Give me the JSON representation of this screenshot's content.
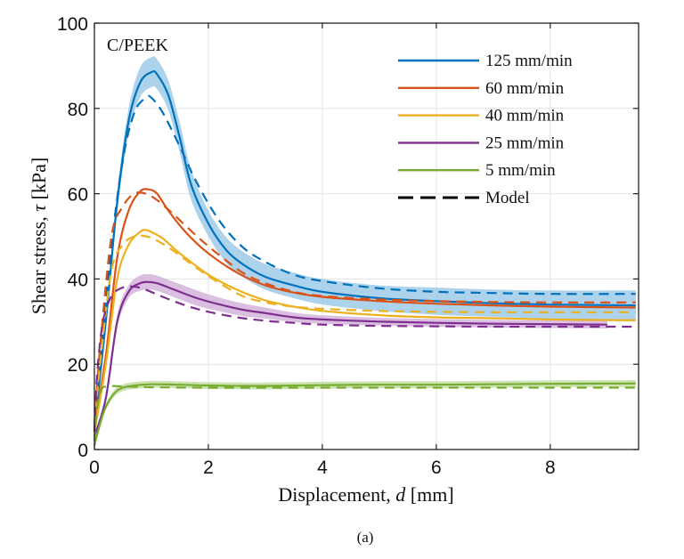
{
  "chart_data": {
    "type": "line",
    "title": "",
    "annotation": "C/PEEK",
    "caption": "(a)",
    "xlabel": "Displacement, d [mm]",
    "xlabel_parts": {
      "pre": "Displacement, ",
      "var": "d",
      "post": " [mm]"
    },
    "ylabel": "Shear stress, τ [kPa]",
    "ylabel_parts": {
      "pre": "Shear stress, ",
      "var": "τ",
      "post": " [kPa]"
    },
    "xlim": [
      0,
      9.55
    ],
    "ylim": [
      0,
      100
    ],
    "xticks": [
      0,
      2,
      4,
      6,
      8
    ],
    "yticks": [
      0,
      20,
      40,
      60,
      80,
      100
    ],
    "xtick_labels": [
      "0",
      "2",
      "4",
      "6",
      "8"
    ],
    "ytick_labels": [
      "0",
      "20",
      "40",
      "60",
      "80",
      "100"
    ],
    "grid": true,
    "legend_position": "top-right",
    "legend": [
      {
        "label": "125 mm/min",
        "color": "#0072BD",
        "style": "solid"
      },
      {
        "label": "60 mm/min",
        "color": "#D95319",
        "style": "solid"
      },
      {
        "label": "40 mm/min",
        "color": "#EDB120",
        "style": "solid"
      },
      {
        "label": "25 mm/min",
        "color": "#7E2F8E",
        "style": "solid"
      },
      {
        "label": "5 mm/min",
        "color": "#77AC30",
        "style": "solid"
      },
      {
        "label": "Model",
        "color": "#000000",
        "style": "dashed"
      }
    ],
    "series": [
      {
        "name": "125 mm/min",
        "color": "#0072BD",
        "band_color": "#9ECAE9",
        "kind": "experiment",
        "x": [
          0,
          0.2,
          0.4,
          0.6,
          0.8,
          1.0,
          1.1,
          1.3,
          1.5,
          1.7,
          2.0,
          2.3,
          2.6,
          3.0,
          3.5,
          4.0,
          5.0,
          6.0,
          7.0,
          8.0,
          9.5
        ],
        "y": [
          5,
          30,
          58,
          77,
          86,
          88.5,
          88,
          83,
          73,
          62,
          53,
          47,
          43.5,
          40.5,
          38.5,
          37,
          35.5,
          34.8,
          34.3,
          34,
          33.8
        ],
        "band": [
          0.5,
          1.5,
          2.5,
          3,
          3.5,
          3.5,
          3.5,
          3.5,
          3.5,
          3.5,
          3,
          3,
          3,
          3,
          3,
          3,
          3,
          3.2,
          3.2,
          3.3,
          3.5
        ]
      },
      {
        "name": "125 mm/min model",
        "color": "#0072BD",
        "kind": "model",
        "x": [
          0,
          0.1,
          0.3,
          0.5,
          0.7,
          0.9,
          1.0,
          1.2,
          1.5,
          1.8,
          2.2,
          2.6,
          3.0,
          3.5,
          4.0,
          5.0,
          6.0,
          7.0,
          8.0,
          9.5
        ],
        "y": [
          6,
          20,
          48,
          68,
          79,
          82.5,
          82.5,
          79,
          71,
          62.5,
          53.5,
          47.5,
          44,
          41,
          39.5,
          37.8,
          37,
          36.7,
          36.5,
          36.5
        ]
      },
      {
        "name": "60 mm/min",
        "color": "#D95319",
        "kind": "experiment",
        "x": [
          0,
          0.2,
          0.4,
          0.6,
          0.8,
          0.95,
          1.1,
          1.3,
          1.6,
          2.0,
          2.5,
          3.0,
          3.5,
          4.0,
          5.0,
          6.0,
          7.0,
          8.0,
          9.5
        ],
        "y": [
          5,
          22,
          45,
          56,
          60.5,
          61,
          60,
          56,
          51,
          46,
          41.5,
          38.5,
          36.8,
          35.8,
          34.8,
          34.2,
          33.8,
          33.5,
          33.3
        ]
      },
      {
        "name": "60 mm/min model",
        "color": "#D95319",
        "kind": "model",
        "x": [
          0,
          0.1,
          0.3,
          0.5,
          0.7,
          0.9,
          1.1,
          1.4,
          1.8,
          2.2,
          2.6,
          3.0,
          3.5,
          4.0,
          5.0,
          6.0,
          7.0,
          8.0,
          9.5
        ],
        "y": [
          6,
          24,
          50,
          57,
          60,
          60,
          58.5,
          55,
          50,
          45.5,
          41.5,
          39,
          37,
          36,
          35.2,
          34.8,
          34.6,
          34.5,
          34.5
        ]
      },
      {
        "name": "40 mm/min",
        "color": "#EDB120",
        "kind": "experiment",
        "x": [
          0,
          0.2,
          0.4,
          0.6,
          0.8,
          0.9,
          1.0,
          1.2,
          1.5,
          2.0,
          2.5,
          3.0,
          3.5,
          4.0,
          5.0,
          6.0,
          7.0,
          8.0,
          9.5
        ],
        "y": [
          4,
          20,
          40,
          48,
          51,
          51.5,
          51,
          49.5,
          46,
          41,
          37.5,
          35,
          33.5,
          32.5,
          31.5,
          31,
          30.8,
          30.5,
          30.3
        ]
      },
      {
        "name": "40 mm/min model",
        "color": "#EDB120",
        "kind": "model",
        "x": [
          0,
          0.1,
          0.3,
          0.5,
          0.7,
          0.9,
          1.1,
          1.4,
          1.8,
          2.2,
          2.6,
          3.0,
          3.5,
          4.0,
          5.0,
          6.0,
          7.0,
          8.0,
          9.5
        ],
        "y": [
          5,
          20,
          42,
          48,
          50,
          50,
          49,
          46.5,
          42.5,
          39,
          36,
          34.5,
          33.5,
          33,
          32.5,
          32.3,
          32.2,
          32.2,
          32.2
        ]
      },
      {
        "name": "25 mm/min",
        "color": "#7E2F8E",
        "band_color": "#D5B4DC",
        "kind": "experiment",
        "x": [
          0,
          0.2,
          0.4,
          0.6,
          0.8,
          0.95,
          1.1,
          1.4,
          1.8,
          2.2,
          2.6,
          3.0,
          3.5,
          4.0,
          5.0,
          6.0,
          7.0,
          8.0,
          9.0
        ],
        "y": [
          3,
          12,
          30,
          37,
          39,
          39.3,
          39,
          37.5,
          35.5,
          34,
          32.8,
          32,
          31,
          30.5,
          30,
          29.7,
          29.5,
          29.4,
          29.3
        ],
        "band": [
          0.5,
          1,
          1.5,
          1.5,
          1.8,
          1.8,
          1.8,
          1.8,
          1.8,
          1.6,
          1.5,
          1.3,
          1.1,
          1,
          0.9,
          0.9,
          0.9,
          0.9,
          0.9
        ]
      },
      {
        "name": "25 mm/min model",
        "color": "#7E2F8E",
        "kind": "model",
        "x": [
          0,
          0.05,
          0.15,
          0.3,
          0.5,
          0.7,
          0.9,
          1.2,
          1.6,
          2.0,
          2.5,
          3.0,
          3.5,
          4.0,
          5.0,
          6.0,
          7.0,
          8.0,
          9.5
        ],
        "y": [
          4,
          18,
          30,
          36,
          38,
          38.2,
          37.5,
          35.8,
          33.8,
          32.3,
          31,
          30.2,
          29.7,
          29.3,
          29,
          28.9,
          28.8,
          28.8,
          28.8
        ]
      },
      {
        "name": "5 mm/min",
        "color": "#77AC30",
        "band_color": "#C4DEA6",
        "kind": "experiment",
        "x": [
          0,
          0.1,
          0.2,
          0.35,
          0.5,
          0.7,
          1.0,
          1.5,
          2.0,
          3.0,
          4.0,
          5.0,
          6.0,
          7.0,
          8.0,
          9.5
        ],
        "y": [
          1,
          6,
          10,
          13.2,
          14.5,
          15,
          15.3,
          15.2,
          15,
          14.9,
          15.1,
          15.2,
          15.2,
          15.3,
          15.4,
          15.5
        ],
        "band": [
          0.3,
          0.5,
          0.7,
          0.8,
          0.8,
          0.8,
          0.8,
          0.8,
          0.8,
          0.8,
          0.8,
          0.8,
          0.8,
          0.8,
          0.8,
          0.8
        ]
      },
      {
        "name": "5 mm/min model",
        "color": "#77AC30",
        "kind": "model",
        "x": [
          0,
          0.05,
          0.12,
          0.2,
          0.3,
          0.5,
          1.0,
          2.0,
          3.0,
          4.0,
          5.0,
          6.0,
          7.0,
          8.0,
          9.5
        ],
        "y": [
          2,
          10,
          14,
          14.8,
          14.9,
          14.8,
          14.6,
          14.5,
          14.5,
          14.5,
          14.5,
          14.5,
          14.5,
          14.5,
          14.5
        ]
      }
    ]
  }
}
